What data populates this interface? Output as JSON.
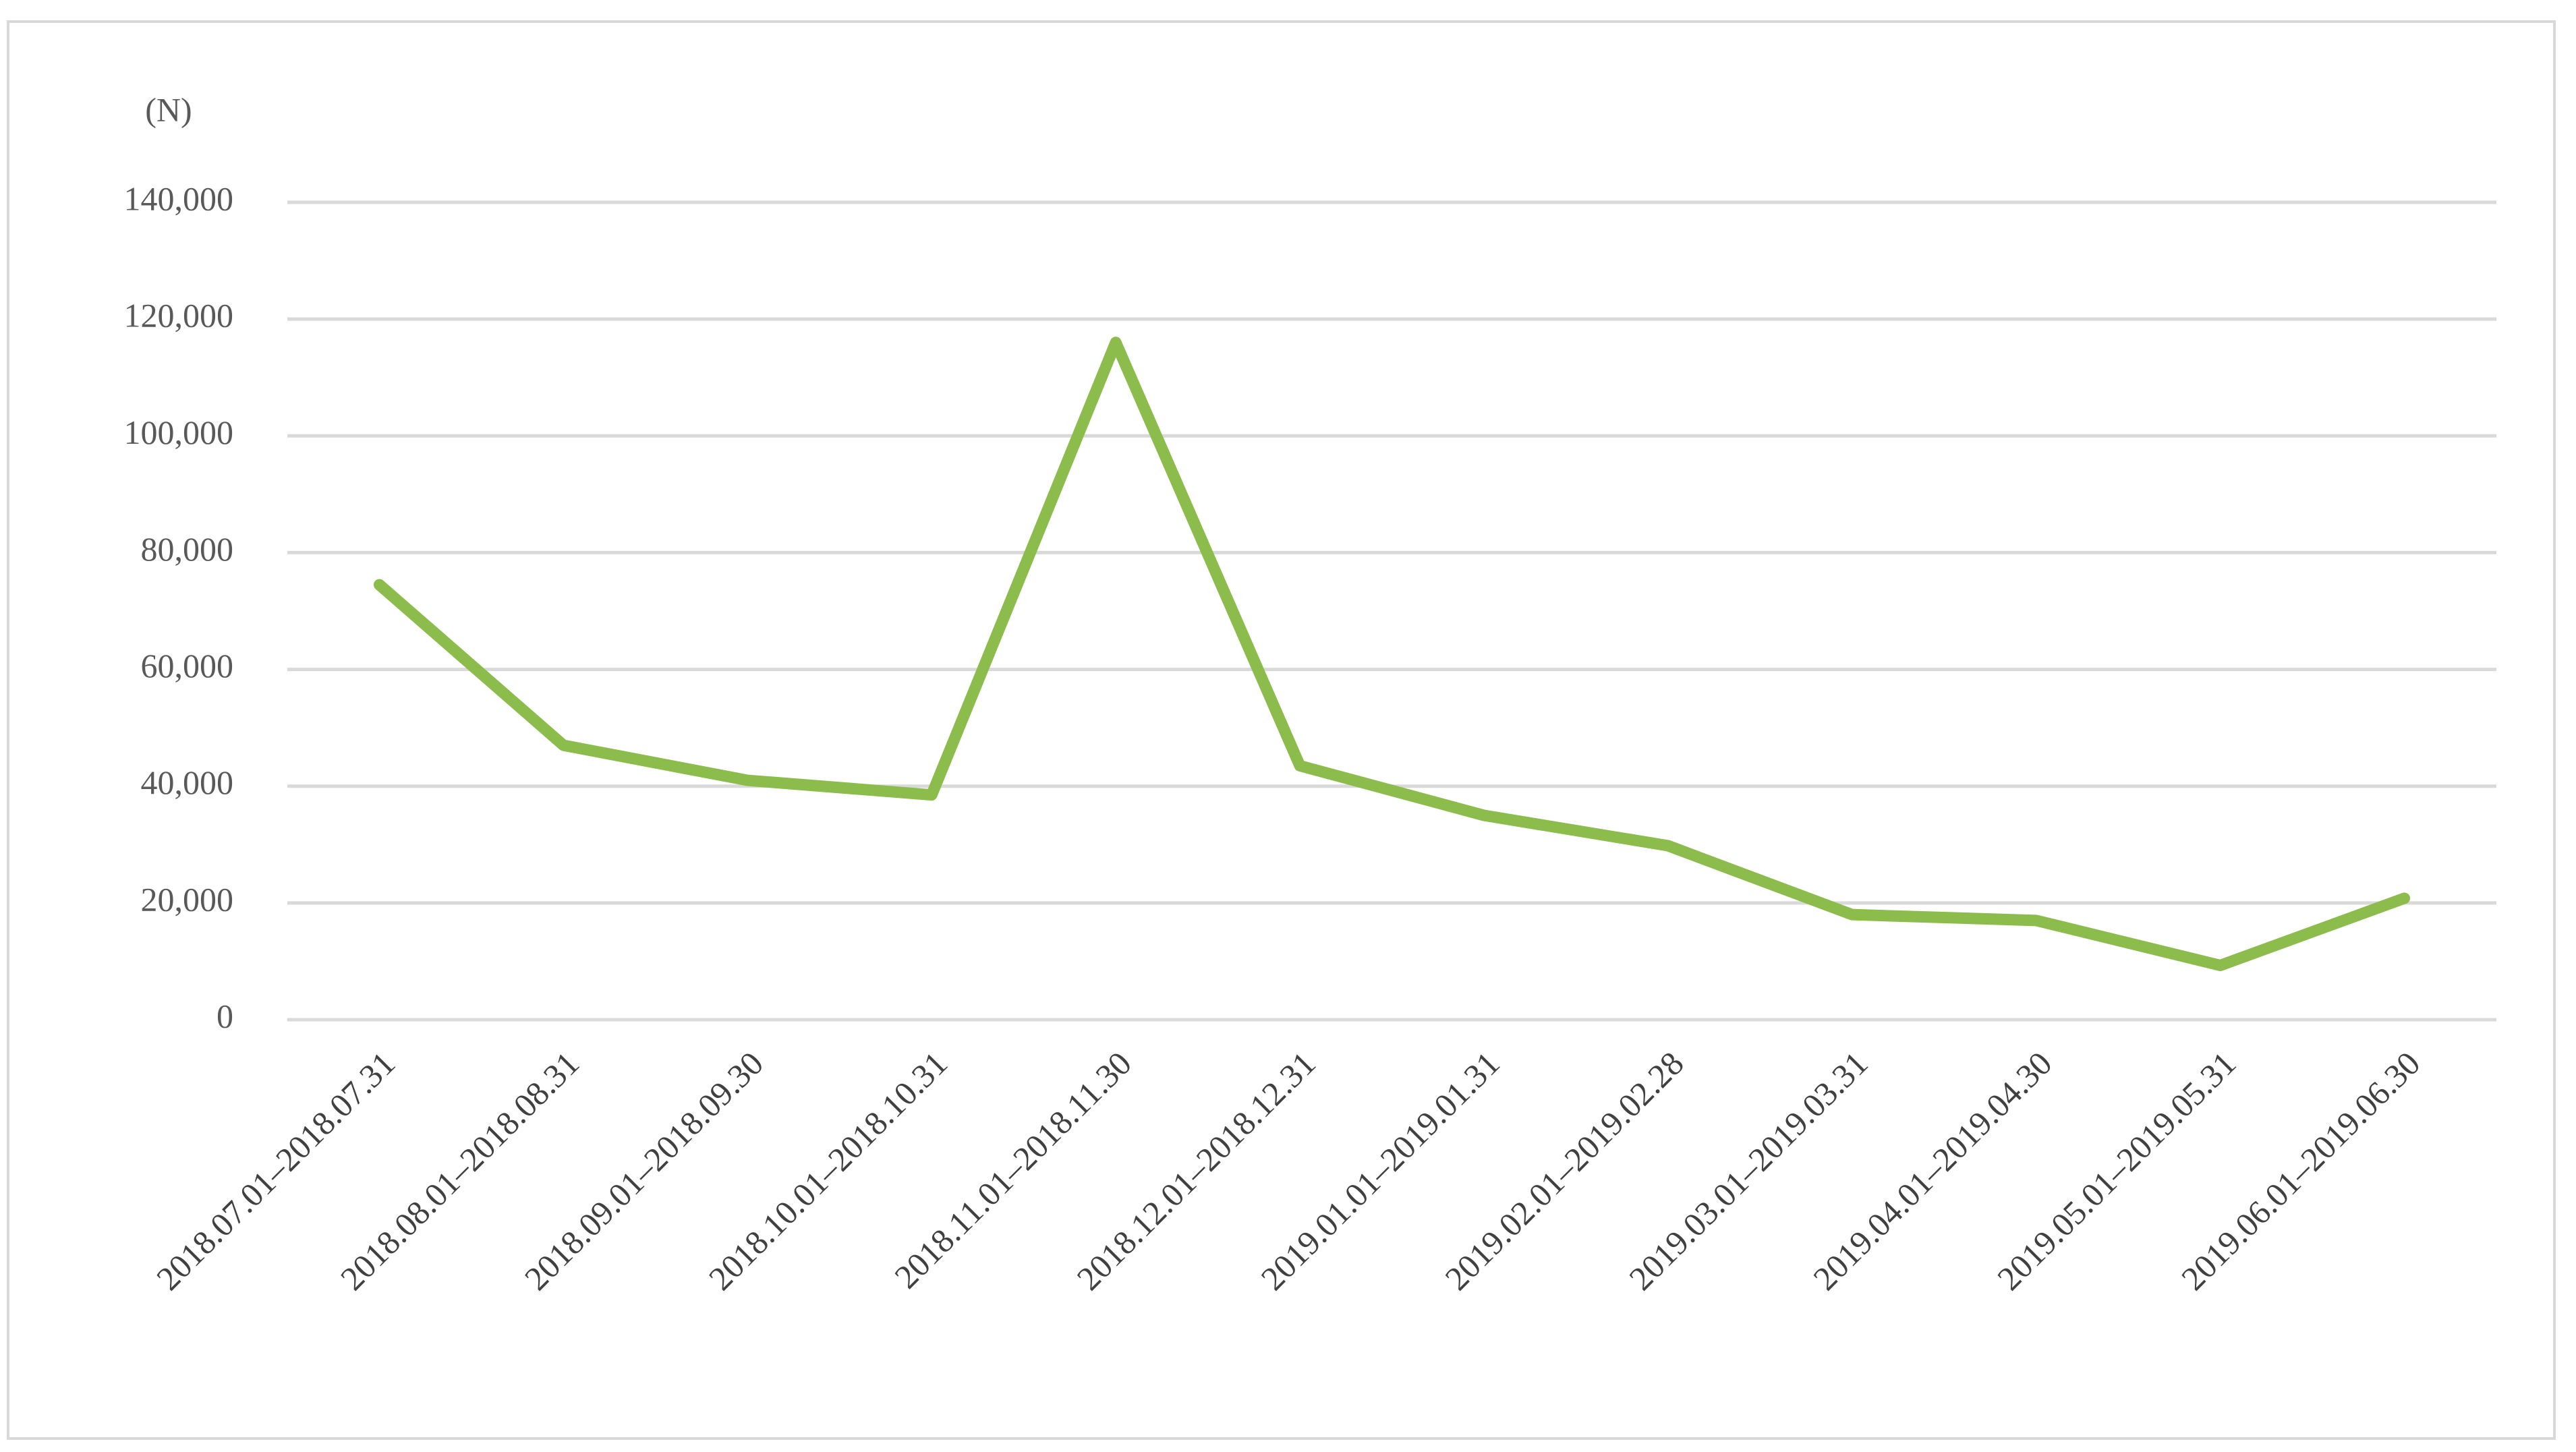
{
  "chart_data": {
    "type": "line",
    "y_label": "(N)",
    "categories": [
      "2018.07.01–2018.07.31",
      "2018.08.01–2018.08.31",
      "2018.09.01–2018.09.30",
      "2018.10.01–2018.10.31",
      "2018.11.01–2018.11.30",
      "2018.12.01–2018.12.31",
      "2019.01.01–2019.01.31",
      "2019.02.01–2019.02.28",
      "2019.03.01–2019.03.31",
      "2019.04.01–2019.04.30",
      "2019.05.01–2019.05.31",
      "2019.06.01–2019.06.30"
    ],
    "values": [
      74500,
      47000,
      41000,
      38500,
      116000,
      43500,
      35000,
      29800,
      18000,
      17000,
      9300,
      20800
    ],
    "color": "#8bbc4c",
    "ylim": [
      0,
      140000
    ],
    "yticks": [
      0,
      {
        "value": 20000,
        "label": "20,000"
      },
      {
        "value": 40000,
        "label": "40,000"
      },
      {
        "value": 60000,
        "label": "60,000"
      },
      {
        "value": 80000,
        "label": "80,000"
      },
      {
        "value": 100000,
        "label": "100,000"
      },
      {
        "value": 120000,
        "label": "120,000"
      },
      {
        "value": 140000,
        "label": "140,000"
      }
    ],
    "grid": true
  }
}
